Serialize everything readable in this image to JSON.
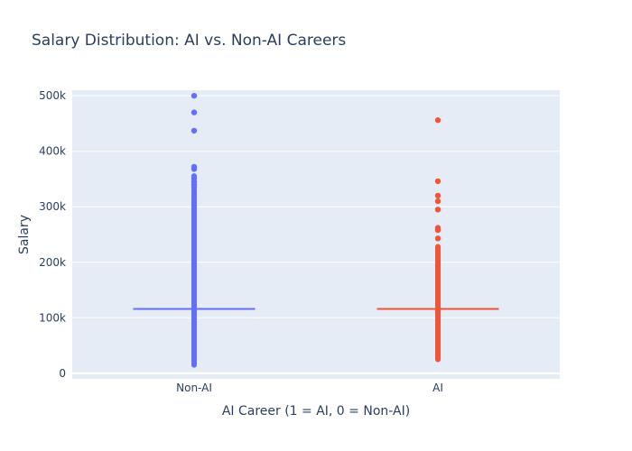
{
  "chart_data": {
    "type": "scatter",
    "title": "Salary Distribution: AI vs. Non-AI Careers",
    "xlabel": "AI Career (1 = AI, 0 = Non-AI)",
    "ylabel": "Salary",
    "categories": [
      "Non-AI",
      "AI"
    ],
    "ylim": [
      -10000,
      510000
    ],
    "yticks": [
      0,
      100000,
      200000,
      300000,
      400000,
      500000
    ],
    "ytick_labels": [
      "0",
      "100k",
      "200k",
      "300k",
      "400k",
      "500k"
    ],
    "grid": true,
    "legend": "none",
    "series": [
      {
        "category": "Non-AI",
        "color": "#636efa",
        "median": 116000,
        "dense_range": [
          15000,
          330000
        ],
        "outliers": [
          335000,
          340000,
          345000,
          350000,
          355000,
          368000,
          372000,
          437000,
          470000,
          500000
        ]
      },
      {
        "category": "AI",
        "color": "#ef553b",
        "median": 116000,
        "dense_range": [
          25000,
          228000
        ],
        "outliers": [
          243000,
          258000,
          262000,
          295000,
          310000,
          320000,
          346000,
          456000
        ]
      }
    ]
  }
}
